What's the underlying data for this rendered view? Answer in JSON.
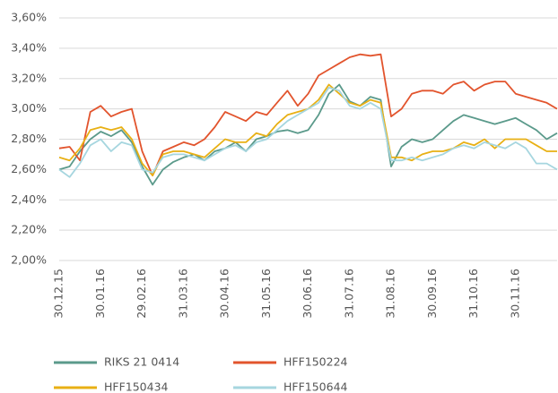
{
  "chart_data": {
    "type": "line",
    "categories": [
      "30.12.15",
      null,
      null,
      null,
      "30.01.16",
      null,
      null,
      null,
      "29.02.16",
      null,
      null,
      null,
      "31.03.16",
      null,
      null,
      null,
      "30.04.16",
      null,
      null,
      null,
      "31.05.16",
      null,
      null,
      null,
      "30.06.16",
      null,
      null,
      null,
      "31.07.16",
      null,
      null,
      null,
      "31.08.16",
      null,
      null,
      null,
      "30.09.16",
      null,
      null,
      null,
      "31.10.16",
      null,
      null,
      null,
      "30.11.16",
      null,
      null,
      null,
      null
    ],
    "series": [
      {
        "name": "RIKS 21 0414",
        "color": "#5b9a8b",
        "values": [
          2.6,
          2.62,
          2.72,
          2.8,
          2.85,
          2.82,
          2.86,
          2.78,
          2.62,
          2.5,
          2.6,
          2.65,
          2.68,
          2.7,
          2.66,
          2.72,
          2.74,
          2.78,
          2.72,
          2.8,
          2.82,
          2.85,
          2.86,
          2.84,
          2.86,
          2.96,
          3.1,
          3.16,
          3.05,
          3.02,
          3.08,
          3.06,
          2.62,
          2.75,
          2.8,
          2.78,
          2.8,
          2.86,
          2.92,
          2.96,
          2.94,
          2.92,
          2.9,
          2.92,
          2.94,
          2.9,
          2.86,
          2.8,
          2.84
        ]
      },
      {
        "name": "HFF150224",
        "color": "#e2542d",
        "values": [
          2.74,
          2.75,
          2.66,
          2.98,
          3.02,
          2.95,
          2.98,
          3.0,
          2.72,
          2.56,
          2.72,
          2.75,
          2.78,
          2.76,
          2.8,
          2.88,
          2.98,
          2.95,
          2.92,
          2.98,
          2.96,
          3.04,
          3.12,
          3.02,
          3.1,
          3.22,
          3.26,
          3.3,
          3.34,
          3.36,
          3.35,
          3.36,
          2.95,
          3.0,
          3.1,
          3.12,
          3.12,
          3.1,
          3.16,
          3.18,
          3.12,
          3.16,
          3.18,
          3.18,
          3.1,
          3.08,
          3.06,
          3.04,
          3.0
        ]
      },
      {
        "name": "HFF150434",
        "color": "#e8b014",
        "values": [
          2.68,
          2.66,
          2.74,
          2.86,
          2.88,
          2.86,
          2.88,
          2.8,
          2.64,
          2.56,
          2.7,
          2.72,
          2.72,
          2.7,
          2.68,
          2.74,
          2.8,
          2.78,
          2.78,
          2.84,
          2.82,
          2.9,
          2.96,
          2.98,
          3.0,
          3.06,
          3.16,
          3.1,
          3.04,
          3.02,
          3.06,
          3.04,
          2.68,
          2.68,
          2.66,
          2.7,
          2.72,
          2.72,
          2.74,
          2.78,
          2.76,
          2.8,
          2.74,
          2.8,
          2.8,
          2.8,
          2.76,
          2.72,
          2.72
        ]
      },
      {
        "name": "HFF150644",
        "color": "#a6d6df",
        "values": [
          2.6,
          2.55,
          2.64,
          2.76,
          2.8,
          2.72,
          2.78,
          2.76,
          2.6,
          2.58,
          2.68,
          2.7,
          2.7,
          2.68,
          2.66,
          2.7,
          2.74,
          2.76,
          2.72,
          2.78,
          2.8,
          2.86,
          2.92,
          2.96,
          3.0,
          3.04,
          3.14,
          3.12,
          3.02,
          3.0,
          3.04,
          3.0,
          2.66,
          2.66,
          2.68,
          2.66,
          2.68,
          2.7,
          2.74,
          2.76,
          2.74,
          2.78,
          2.76,
          2.74,
          2.78,
          2.74,
          2.64,
          2.64,
          2.6
        ]
      }
    ],
    "ylim": [
      2.0,
      3.6
    ],
    "yticks": [
      {
        "value": 2.0,
        "label": "2,00%"
      },
      {
        "value": 2.2,
        "label": "2,20%"
      },
      {
        "value": 2.4,
        "label": "2,40%"
      },
      {
        "value": 2.6,
        "label": "2,60%"
      },
      {
        "value": 2.8,
        "label": "2,80%"
      },
      {
        "value": 3.0,
        "label": "3,00%"
      },
      {
        "value": 3.2,
        "label": "3,20%"
      },
      {
        "value": 3.4,
        "label": "3,40%"
      },
      {
        "value": 3.6,
        "label": "3,60%"
      }
    ],
    "grid": true
  }
}
